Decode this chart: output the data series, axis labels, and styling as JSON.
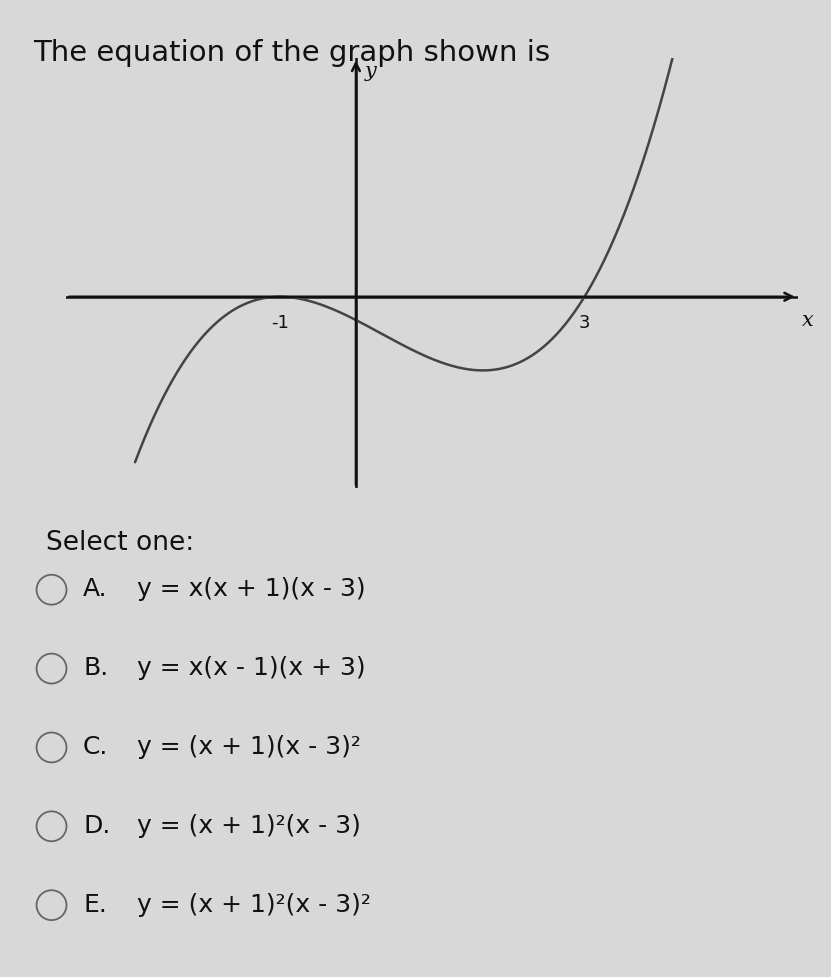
{
  "title": "The equation of the graph shown is",
  "title_fontsize": 21,
  "background_color": "#d8d8d8",
  "curve_color": "#444444",
  "axis_color": "#111111",
  "text_color": "#111111",
  "x_label": "x",
  "y_label": "y",
  "x_tick_labels": [
    "-1",
    "3"
  ],
  "x_tick_positions": [
    -1,
    3
  ],
  "select_one_text": "Select one:",
  "options": [
    {
      "label": "A.",
      "formula": "y = x(x + 1)(x - 3)"
    },
    {
      "label": "B.",
      "formula": "y = x(x - 1)(x + 3)"
    },
    {
      "label": "C.",
      "formula": "y = (x + 1)(x - 3)²"
    },
    {
      "label": "D.",
      "formula": "y = (x + 1)²(x - 3)"
    },
    {
      "label": "E.",
      "formula": "y = (x + 1)²(x - 3)²"
    }
  ],
  "option_fontsize": 18,
  "select_fontsize": 19,
  "xlim": [
    -3.8,
    5.8
  ],
  "ylim": [
    -3.2,
    4.0
  ],
  "curve_scale": 0.13
}
